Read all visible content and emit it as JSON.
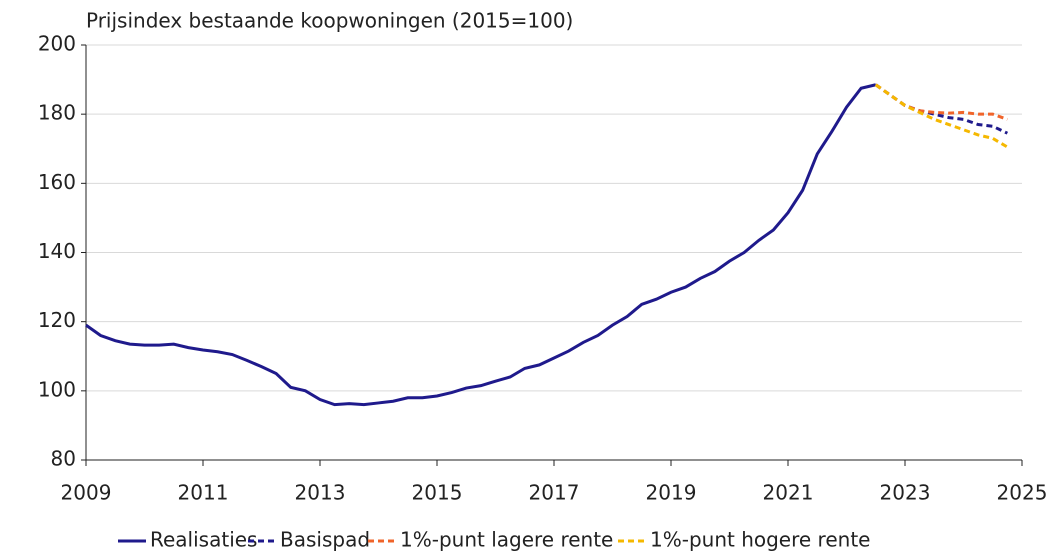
{
  "chart_data": {
    "type": "line",
    "title": "Prijsindex bestaande koopwoningen (2015=100)",
    "xlim": [
      2009,
      2025
    ],
    "xticks": [
      2009,
      2011,
      2013,
      2015,
      2017,
      2019,
      2021,
      2023,
      2025
    ],
    "ylim": [
      80,
      200
    ],
    "yticks": [
      80,
      100,
      120,
      140,
      160,
      180,
      200
    ],
    "grid": true,
    "legend": "bottom",
    "series": [
      {
        "name": "Realisaties",
        "color": "#1f1a8c",
        "dash": false,
        "x": [
          2009,
          2009.25,
          2009.5,
          2009.75,
          2010,
          2010.25,
          2010.5,
          2010.75,
          2011,
          2011.25,
          2011.5,
          2011.75,
          2012,
          2012.25,
          2012.5,
          2012.75,
          2013,
          2013.25,
          2013.5,
          2013.75,
          2014,
          2014.25,
          2014.5,
          2014.75,
          2015,
          2015.25,
          2015.5,
          2015.75,
          2016,
          2016.25,
          2016.5,
          2016.75,
          2017,
          2017.25,
          2017.5,
          2017.75,
          2018,
          2018.25,
          2018.5,
          2018.75,
          2019,
          2019.25,
          2019.5,
          2019.75,
          2020,
          2020.25,
          2020.5,
          2020.75,
          2021,
          2021.25,
          2021.5,
          2021.75,
          2022,
          2022.25,
          2022.5
        ],
        "values": [
          119,
          116,
          114.5,
          113.5,
          113.2,
          113.2,
          113.5,
          112.5,
          111.8,
          111.3,
          110.5,
          108.8,
          107,
          105,
          101,
          100,
          97.5,
          96,
          96.3,
          96,
          96.5,
          97,
          98,
          98,
          98.5,
          99.5,
          100.8,
          101.5,
          102.8,
          104,
          106.5,
          107.5,
          109.5,
          111.5,
          114,
          116,
          119,
          121.5,
          125,
          126.5,
          128.5,
          130,
          132.5,
          134.5,
          137.5,
          140,
          143.5,
          146.5,
          151.5,
          158,
          168.5,
          175,
          182,
          187.5,
          188.5
        ]
      },
      {
        "name": "Basispad",
        "color": "#1f1a8c",
        "dash": true,
        "x": [
          2022.5,
          2022.75,
          2023,
          2023.25,
          2023.5,
          2023.75,
          2024,
          2024.25,
          2024.5,
          2024.75
        ],
        "values": [
          188.5,
          185.5,
          182.5,
          181,
          180,
          179,
          178.5,
          177,
          176.5,
          174.5
        ]
      },
      {
        "name": "1%-punt lagere rente",
        "color": "#f0642a",
        "dash": true,
        "x": [
          2022.5,
          2022.75,
          2023,
          2023.25,
          2023.5,
          2023.75,
          2024,
          2024.25,
          2024.5,
          2024.75
        ],
        "values": [
          188.5,
          185.5,
          182.5,
          181,
          180.5,
          180.3,
          180.5,
          180,
          180,
          178.5
        ]
      },
      {
        "name": "1%-punt hogere rente",
        "color": "#f5b800",
        "dash": true,
        "x": [
          2022.5,
          2022.75,
          2023,
          2023.25,
          2023.5,
          2023.75,
          2024,
          2024.25,
          2024.5,
          2024.75
        ],
        "values": [
          188.5,
          185.5,
          182.5,
          180.5,
          178.5,
          177,
          175.5,
          174,
          173,
          170.5
        ]
      }
    ]
  }
}
